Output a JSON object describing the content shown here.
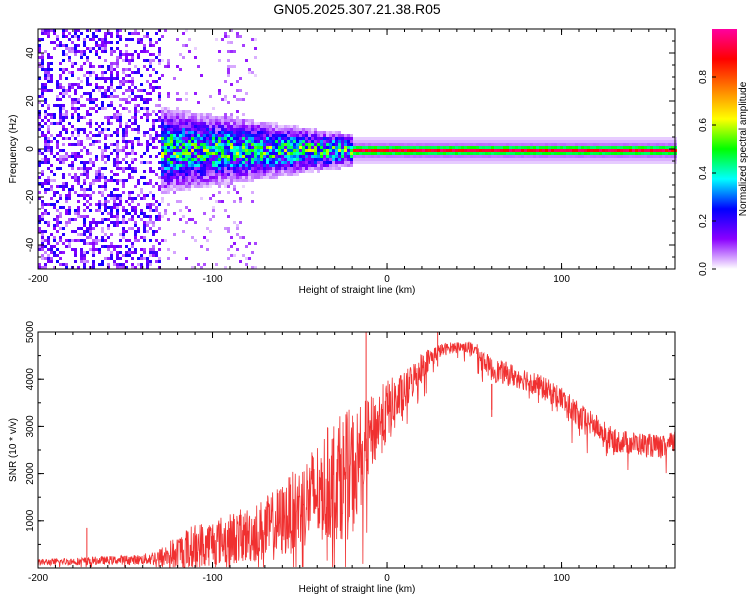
{
  "title": "GN05.2025.307.21.38.R05",
  "chart_data": [
    {
      "type": "heatmap",
      "title": "GN05.2025.307.21.38.R05",
      "xlabel": "Height of straight line (km)",
      "ylabel": "Frequency (Hz)",
      "xlim": [
        -200,
        165
      ],
      "ylim": [
        -50,
        50
      ],
      "xticks": [
        -200,
        -100,
        0,
        100
      ],
      "yticks": [
        -40,
        -20,
        0,
        20,
        40
      ],
      "colorbar": {
        "label": "Normalized spectral amplitude",
        "range": [
          0,
          1
        ],
        "ticks": [
          "0.0",
          "0.2",
          "0.4",
          "0.6",
          "0.8"
        ],
        "colormap": [
          "#ffffff",
          "#8a00ff",
          "#0000ff",
          "#00ffff",
          "#00ff00",
          "#ffff00",
          "#ff8000",
          "#ff0000",
          "#ff00a0"
        ]
      },
      "regions": [
        {
          "name": "diffuse-noise",
          "x": [
            -200,
            -130
          ],
          "freq_spread": 50,
          "amplitude": 0.15
        },
        {
          "name": "sparse-noise",
          "x": [
            -130,
            -75
          ],
          "freq_spread": 50,
          "amplitude": 0.05
        },
        {
          "name": "emerging-signal",
          "x": [
            -130,
            -20
          ],
          "freq_center": 0,
          "freq_spread": 6,
          "amplitude": 0.45
        },
        {
          "name": "strong-signal",
          "x": [
            -20,
            165
          ],
          "freq_center": 0,
          "freq_spread": 2,
          "amplitude": 0.9
        }
      ]
    },
    {
      "type": "line",
      "xlabel": "Height of straight line (km)",
      "ylabel": "SNR (10 * v/v)",
      "xlim": [
        -200,
        165
      ],
      "ylim": [
        0,
        5000
      ],
      "xticks": [
        -200,
        -100,
        0,
        100
      ],
      "yticks": [
        1000,
        2000,
        3000,
        4000,
        5000
      ],
      "series": [
        {
          "name": "SNR",
          "color": "#f03030",
          "envelope_x": [
            -200,
            -180,
            -160,
            -140,
            -130,
            -120,
            -110,
            -100,
            -90,
            -80,
            -70,
            -60,
            -50,
            -40,
            -30,
            -20,
            -10,
            0,
            10,
            20,
            30,
            40,
            50,
            60,
            70,
            80,
            90,
            100,
            110,
            120,
            130,
            140,
            150,
            160,
            165
          ],
          "envelope_mid": [
            120,
            140,
            160,
            180,
            230,
            320,
            450,
            550,
            620,
            700,
            800,
            1000,
            1300,
            1600,
            1900,
            2000,
            2800,
            3300,
            3700,
            4300,
            4600,
            4700,
            4650,
            4200,
            4100,
            4000,
            3800,
            3600,
            3200,
            3000,
            2700,
            2650,
            2600,
            2550,
            2700
          ],
          "envelope_amp": [
            70,
            80,
            90,
            110,
            200,
            400,
            500,
            500,
            550,
            600,
            700,
            800,
            900,
            1100,
            1300,
            1400,
            800,
            700,
            450,
            300,
            150,
            100,
            150,
            250,
            250,
            250,
            250,
            250,
            300,
            250,
            250,
            250,
            250,
            250,
            250
          ]
        }
      ],
      "annotations": [
        {
          "x": -172,
          "y": 850
        },
        {
          "x": -12,
          "y": 5000
        },
        {
          "x": 29,
          "y": 5000
        },
        {
          "x": 60,
          "y": 3350
        },
        {
          "x": 60,
          "y": 3200
        }
      ]
    }
  ]
}
